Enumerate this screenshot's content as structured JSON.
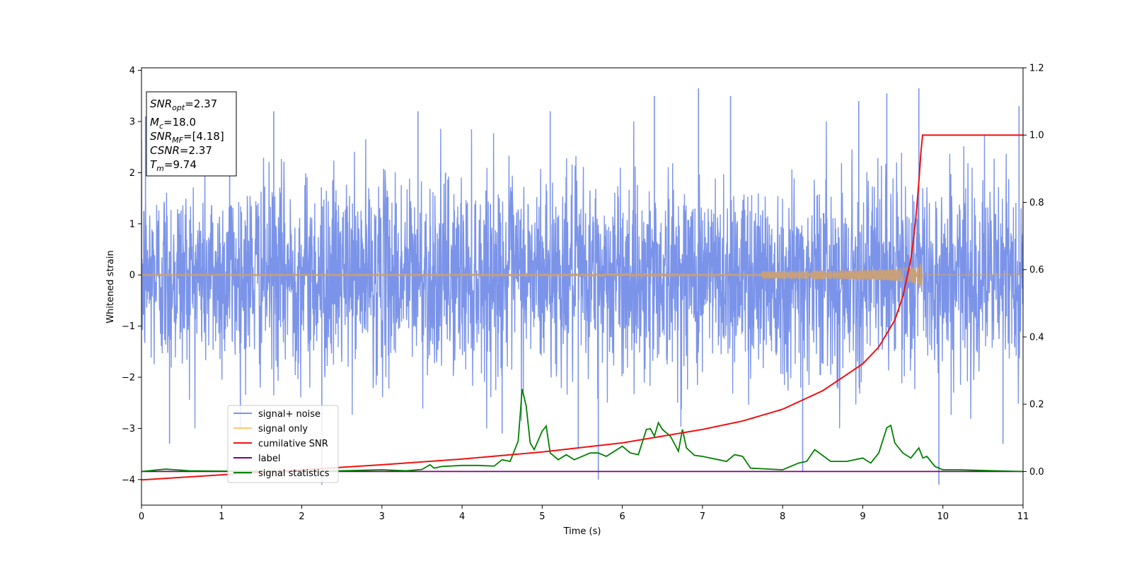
{
  "chart_data": {
    "type": "line",
    "xlabel": "Time (s)",
    "ylabel": "Whitened strain",
    "xlim": [
      0,
      11
    ],
    "ylim": [
      -4.5,
      4.05
    ],
    "y2lim": [
      -0.1,
      1.2
    ],
    "x_ticks": [
      0,
      1,
      2,
      3,
      4,
      5,
      6,
      7,
      8,
      9,
      10,
      11
    ],
    "y_ticks": [
      -4,
      -3,
      -2,
      -1,
      0,
      1,
      2,
      3,
      4
    ],
    "y2_ticks": [
      0.0,
      0.2,
      0.4,
      0.6,
      0.8,
      1.0,
      1.2
    ],
    "grid": false,
    "legend_position": "lower-left",
    "annotation": {
      "snr_opt": {
        "symbol": "SNR",
        "subscript": "opt",
        "value": "=2.37"
      },
      "mc": {
        "symbol": "M",
        "subscript": "c",
        "value": "=18.0"
      },
      "snr_mf": {
        "symbol": "SNR",
        "subscript": "MF",
        "value": "=[4.18]"
      },
      "csnr": {
        "symbol": "CSNR",
        "subscript": "",
        "value": "=2.37"
      },
      "tm": {
        "symbol": "T",
        "subscript": "m",
        "value": "=9.74"
      }
    },
    "series": [
      {
        "name": "signal+ noise",
        "color": "#7b94e9",
        "axis": "left",
        "kind": "noise",
        "std": 1.0,
        "peak_values": [
          [
            0.05,
            3.1
          ],
          [
            0.35,
            -3.3
          ],
          [
            1.1,
            3.05
          ],
          [
            1.65,
            3.2
          ],
          [
            2.25,
            -4.1
          ],
          [
            3.45,
            3.2
          ],
          [
            4.5,
            -3.1
          ],
          [
            5.1,
            3.2
          ],
          [
            5.45,
            -3.4
          ],
          [
            5.7,
            -4.0
          ],
          [
            6.4,
            3.5
          ],
          [
            6.95,
            3.65
          ],
          [
            7.35,
            3.5
          ],
          [
            8.25,
            -3.85
          ],
          [
            8.95,
            3.4
          ],
          [
            9.3,
            3.55
          ],
          [
            9.7,
            3.65
          ],
          [
            9.95,
            -4.1
          ],
          [
            10.75,
            -3.3
          ],
          [
            10.95,
            3.3
          ]
        ]
      },
      {
        "name": "signal only",
        "color": "#c8a07a",
        "axis": "left",
        "kind": "chirp",
        "merger_time": 9.74,
        "peak_amplitude": 0.42
      },
      {
        "name": "cumilative SNR",
        "color": "#ee1111",
        "axis": "right",
        "kind": "line",
        "x": [
          0,
          1,
          2,
          3,
          4,
          5,
          6,
          7,
          7.5,
          8,
          8.5,
          9,
          9.2,
          9.4,
          9.5,
          9.6,
          9.65,
          9.7,
          9.74,
          11
        ],
        "values": [
          -0.025,
          -0.01,
          0.005,
          0.02,
          0.037,
          0.058,
          0.085,
          0.125,
          0.15,
          0.185,
          0.24,
          0.32,
          0.37,
          0.45,
          0.52,
          0.63,
          0.72,
          0.86,
          1.0,
          1.0
        ]
      },
      {
        "name": "label",
        "color": "#800080",
        "axis": "right",
        "kind": "line",
        "x": [
          0,
          11
        ],
        "values": [
          0.0,
          0.0
        ]
      },
      {
        "name": "signal statistics",
        "color": "#008000",
        "axis": "right",
        "kind": "line",
        "x": [
          0,
          0.3,
          0.6,
          1.0,
          1.5,
          2.0,
          2.5,
          3.0,
          3.3,
          3.5,
          3.6,
          3.65,
          3.75,
          4.0,
          4.2,
          4.4,
          4.5,
          4.6,
          4.7,
          4.75,
          4.8,
          4.85,
          4.9,
          5.0,
          5.05,
          5.1,
          5.2,
          5.3,
          5.4,
          5.5,
          5.6,
          5.7,
          5.8,
          5.9,
          6.0,
          6.1,
          6.2,
          6.3,
          6.35,
          6.4,
          6.45,
          6.5,
          6.6,
          6.7,
          6.75,
          6.8,
          6.9,
          7.0,
          7.1,
          7.3,
          7.4,
          7.5,
          7.6,
          8.0,
          8.2,
          8.3,
          8.4,
          8.6,
          8.8,
          9.0,
          9.1,
          9.2,
          9.3,
          9.35,
          9.4,
          9.5,
          9.6,
          9.7,
          9.75,
          9.8,
          9.9,
          10.0,
          10.2,
          10.5,
          11.0
        ],
        "values": [
          0.0,
          0.007,
          0.002,
          0.001,
          0.001,
          0.001,
          0.002,
          0.005,
          0.002,
          0.006,
          0.02,
          0.01,
          0.015,
          0.018,
          0.018,
          0.016,
          0.035,
          0.03,
          0.09,
          0.245,
          0.195,
          0.085,
          0.065,
          0.12,
          0.135,
          0.055,
          0.035,
          0.05,
          0.035,
          0.045,
          0.055,
          0.055,
          0.045,
          0.06,
          0.075,
          0.055,
          0.05,
          0.125,
          0.127,
          0.105,
          0.145,
          0.125,
          0.105,
          0.06,
          0.125,
          0.07,
          0.048,
          0.045,
          0.04,
          0.03,
          0.05,
          0.045,
          0.01,
          0.005,
          0.025,
          0.03,
          0.065,
          0.03,
          0.03,
          0.04,
          0.025,
          0.055,
          0.13,
          0.137,
          0.085,
          0.055,
          0.04,
          0.07,
          0.04,
          0.045,
          0.015,
          0.005,
          0.005,
          0.003,
          0.0
        ]
      }
    ]
  }
}
